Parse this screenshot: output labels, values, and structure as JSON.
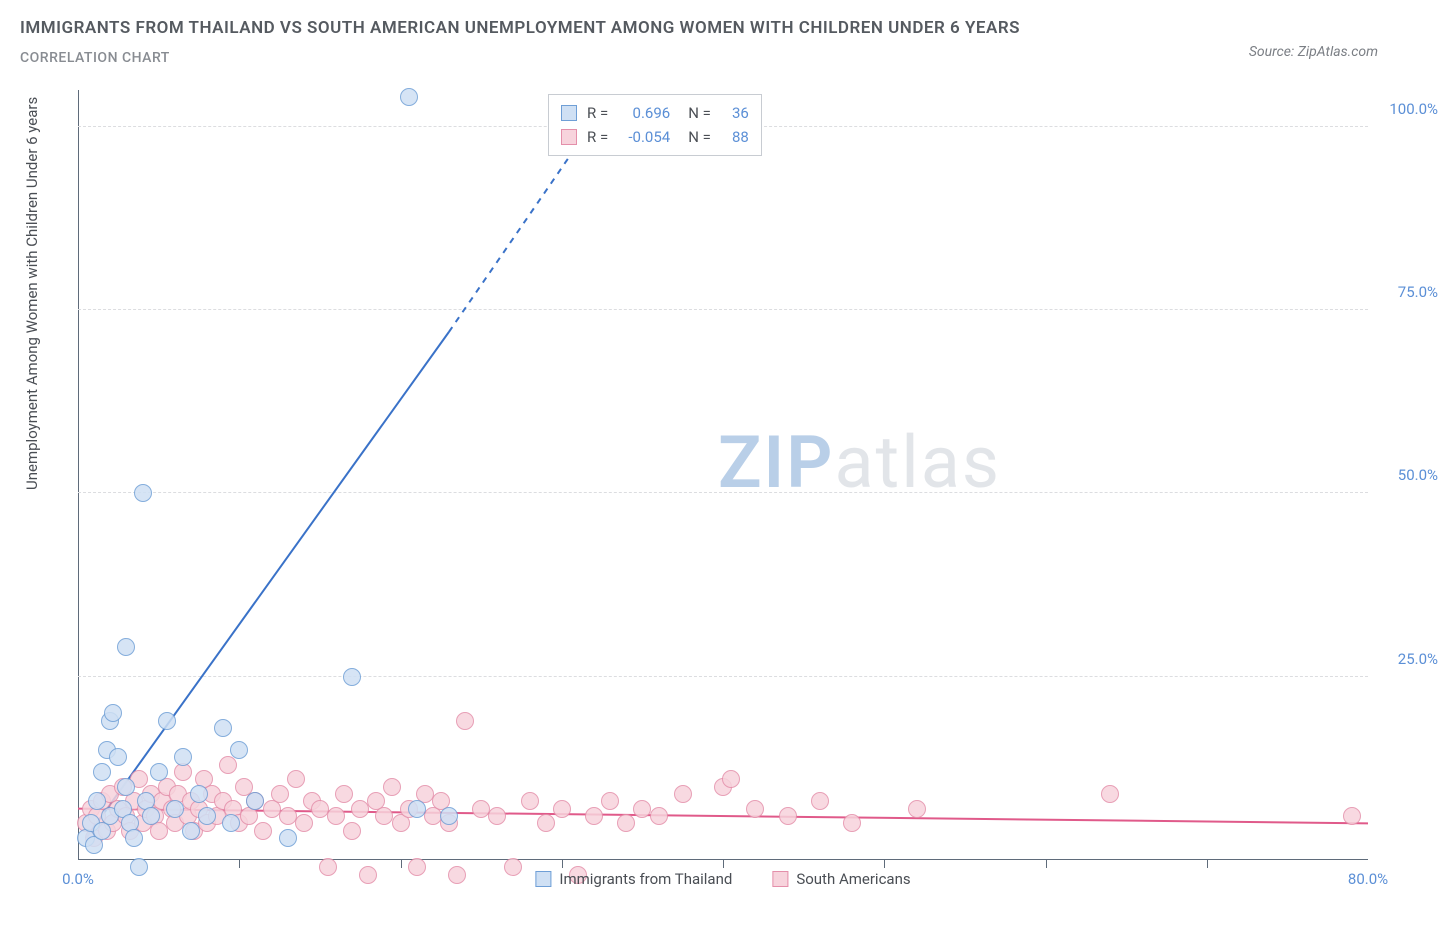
{
  "title": "IMMIGRANTS FROM THAILAND VS SOUTH AMERICAN UNEMPLOYMENT AMONG WOMEN WITH CHILDREN UNDER 6 YEARS",
  "subtitle": "CORRELATION CHART",
  "source_prefix": "Source: ",
  "source_name": "ZipAtlas.com",
  "y_axis_label": "Unemployment Among Women with Children Under 6 years",
  "watermark": {
    "left": "ZIP",
    "right": "atlas"
  },
  "chart": {
    "type": "scatter",
    "background_color": "#ffffff",
    "grid_color": "#dcdde0",
    "axis_color": "#5f6b7a",
    "x": {
      "min": 0,
      "max": 80,
      "tick_step": 10,
      "label_min": "0.0%",
      "label_max": "80.0%"
    },
    "y": {
      "min": 0,
      "max": 105,
      "ticks": [
        25,
        50,
        75,
        100
      ],
      "labels": [
        "25.0%",
        "50.0%",
        "75.0%",
        "100.0%"
      ]
    },
    "point_radius": 9,
    "point_border_width": 1.5,
    "series": [
      {
        "name": "Immigrants from Thailand",
        "fill": "#cfe0f4",
        "stroke": "#6f9fd6",
        "R_label": "R =",
        "R": "0.696",
        "N_label": "N =",
        "N": "36",
        "trend": {
          "color": "#3a72c8",
          "width": 2,
          "x1": 0.5,
          "y1": 3,
          "x2_solid": 23,
          "y2_solid": 72,
          "x2_dash": 33,
          "y2_dash": 104
        },
        "points": [
          [
            0.5,
            3
          ],
          [
            0.8,
            5
          ],
          [
            1.0,
            2
          ],
          [
            1.2,
            8
          ],
          [
            1.5,
            12
          ],
          [
            1.5,
            4
          ],
          [
            1.8,
            15
          ],
          [
            2.0,
            19
          ],
          [
            2.0,
            6
          ],
          [
            2.2,
            20
          ],
          [
            2.5,
            14
          ],
          [
            2.8,
            7
          ],
          [
            3.0,
            10
          ],
          [
            3.0,
            29
          ],
          [
            3.2,
            5
          ],
          [
            3.5,
            3
          ],
          [
            3.8,
            -1
          ],
          [
            4.0,
            50
          ],
          [
            4.2,
            8
          ],
          [
            4.5,
            6
          ],
          [
            5.0,
            12
          ],
          [
            5.5,
            19
          ],
          [
            6.0,
            7
          ],
          [
            6.5,
            14
          ],
          [
            7.0,
            4
          ],
          [
            7.5,
            9
          ],
          [
            8.0,
            6
          ],
          [
            9.0,
            18
          ],
          [
            9.5,
            5
          ],
          [
            10.0,
            15
          ],
          [
            11.0,
            8
          ],
          [
            13.0,
            3
          ],
          [
            17.0,
            25
          ],
          [
            20.5,
            104
          ],
          [
            21.0,
            7
          ],
          [
            23.0,
            6
          ]
        ]
      },
      {
        "name": "South Americans",
        "fill": "#f7d3dc",
        "stroke": "#e48faa",
        "R_label": "R =",
        "R": "-0.054",
        "N_label": "N =",
        "N": "88",
        "trend": {
          "color": "#e05a8a",
          "width": 2,
          "x1": 0,
          "y1": 7,
          "x2_solid": 80,
          "y2_solid": 5
        },
        "points": [
          [
            0.5,
            5
          ],
          [
            0.8,
            7
          ],
          [
            1.0,
            3
          ],
          [
            1.2,
            6
          ],
          [
            1.5,
            8
          ],
          [
            1.8,
            4
          ],
          [
            2.0,
            9
          ],
          [
            2.2,
            5
          ],
          [
            2.5,
            7
          ],
          [
            2.8,
            10
          ],
          [
            3.0,
            6
          ],
          [
            3.2,
            4
          ],
          [
            3.5,
            8
          ],
          [
            3.8,
            11
          ],
          [
            4.0,
            5
          ],
          [
            4.2,
            7
          ],
          [
            4.5,
            9
          ],
          [
            4.8,
            6
          ],
          [
            5.0,
            4
          ],
          [
            5.2,
            8
          ],
          [
            5.5,
            10
          ],
          [
            5.8,
            7
          ],
          [
            6.0,
            5
          ],
          [
            6.2,
            9
          ],
          [
            6.5,
            12
          ],
          [
            6.8,
            6
          ],
          [
            7.0,
            8
          ],
          [
            7.2,
            4
          ],
          [
            7.5,
            7
          ],
          [
            7.8,
            11
          ],
          [
            8.0,
            5
          ],
          [
            8.3,
            9
          ],
          [
            8.6,
            6
          ],
          [
            9.0,
            8
          ],
          [
            9.3,
            13
          ],
          [
            9.6,
            7
          ],
          [
            10.0,
            5
          ],
          [
            10.3,
            10
          ],
          [
            10.6,
            6
          ],
          [
            11.0,
            8
          ],
          [
            11.5,
            4
          ],
          [
            12.0,
            7
          ],
          [
            12.5,
            9
          ],
          [
            13.0,
            6
          ],
          [
            13.5,
            11
          ],
          [
            14.0,
            5
          ],
          [
            14.5,
            8
          ],
          [
            15.0,
            7
          ],
          [
            15.5,
            -1
          ],
          [
            16.0,
            6
          ],
          [
            16.5,
            9
          ],
          [
            17.0,
            4
          ],
          [
            17.5,
            7
          ],
          [
            18.0,
            -2
          ],
          [
            18.5,
            8
          ],
          [
            19.0,
            6
          ],
          [
            19.5,
            10
          ],
          [
            20.0,
            5
          ],
          [
            20.5,
            7
          ],
          [
            21.0,
            -1
          ],
          [
            21.5,
            9
          ],
          [
            22.0,
            6
          ],
          [
            22.5,
            8
          ],
          [
            23.0,
            5
          ],
          [
            23.5,
            -2
          ],
          [
            24.0,
            19
          ],
          [
            25.0,
            7
          ],
          [
            26.0,
            6
          ],
          [
            27.0,
            -1
          ],
          [
            28.0,
            8
          ],
          [
            29.0,
            5
          ],
          [
            30.0,
            7
          ],
          [
            31.0,
            -2
          ],
          [
            32.0,
            6
          ],
          [
            33.0,
            8
          ],
          [
            34.0,
            5
          ],
          [
            35.0,
            7
          ],
          [
            36.0,
            6
          ],
          [
            37.5,
            9
          ],
          [
            40.0,
            10
          ],
          [
            40.5,
            11
          ],
          [
            42.0,
            7
          ],
          [
            44.0,
            6
          ],
          [
            46.0,
            8
          ],
          [
            48.0,
            5
          ],
          [
            52.0,
            7
          ],
          [
            64.0,
            9
          ],
          [
            79.0,
            6
          ]
        ]
      }
    ],
    "bottom_legend": [
      {
        "label": "Immigrants from Thailand",
        "fill": "#cfe0f4",
        "stroke": "#6f9fd6"
      },
      {
        "label": "South Americans",
        "fill": "#f7d3dc",
        "stroke": "#e48faa"
      }
    ]
  }
}
